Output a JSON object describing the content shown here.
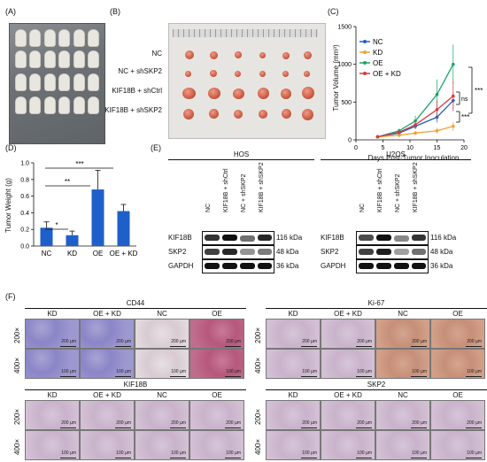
{
  "panels": {
    "a": "(A)",
    "b": "(B)",
    "c": "(C)",
    "d": "(D)",
    "e": "(E)",
    "f": "(F)"
  },
  "panel_b": {
    "rows": [
      "NC",
      "NC + shSKP2",
      "KIF18B + shCtrl",
      "KIF18B + shSKP2"
    ]
  },
  "chart_data": [
    {
      "type": "line",
      "xlabel": "Days Post-Tumor Inoculation",
      "ylabel": "Tumor Volume (mm³)",
      "x": [
        4,
        8,
        11,
        15,
        18
      ],
      "xticks": [
        0,
        5,
        10,
        15,
        20
      ],
      "yticks": [
        0,
        500,
        1000,
        1500
      ],
      "xlim": [
        0,
        20
      ],
      "ylim": [
        0,
        1500
      ],
      "series": [
        {
          "name": "NC",
          "color": "#1f5fc9",
          "values": [
            40,
            90,
            180,
            300,
            520
          ],
          "err": [
            10,
            20,
            40,
            70,
            120
          ]
        },
        {
          "name": "KD",
          "color": "#f1a232",
          "values": [
            40,
            60,
            90,
            120,
            180
          ],
          "err": [
            8,
            15,
            25,
            40,
            60
          ]
        },
        {
          "name": "OE",
          "color": "#1aa36b",
          "values": [
            40,
            120,
            250,
            600,
            1000
          ],
          "err": [
            10,
            30,
            70,
            200,
            260
          ]
        },
        {
          "name": "OE + KD",
          "color": "#d93a3a",
          "values": [
            40,
            100,
            200,
            400,
            580
          ],
          "err": [
            10,
            25,
            60,
            120,
            200
          ]
        }
      ],
      "legend_position": "top-left",
      "annotations": [
        "***",
        "ns",
        "***"
      ]
    },
    {
      "type": "bar",
      "ylabel": "Tumor Weight (g)",
      "categories": [
        "NC",
        "KD",
        "OE",
        "OE + KD"
      ],
      "values": [
        0.22,
        0.13,
        0.68,
        0.42
      ],
      "err": [
        0.07,
        0.05,
        0.23,
        0.08
      ],
      "yticks": [
        0,
        0.2,
        0.4,
        0.6,
        0.8,
        1.0
      ],
      "ylim": [
        0,
        1.0
      ],
      "color": "#1f5fc9",
      "annotations": [
        "*",
        "**",
        "***"
      ]
    }
  ],
  "panel_e": {
    "left": {
      "title": "HOS",
      "lanes": [
        "NC",
        "KIF18B + shCtrl",
        "NC + shSKP2",
        "KIF18B + shSKP2"
      ]
    },
    "right": {
      "title": "U2OS",
      "lanes": [
        "NC",
        "KIF18B + shCtrl",
        "NC + shSKP2",
        "KIF18B + shSKP2"
      ]
    },
    "proteins": [
      "KIF18B",
      "SKP2",
      "GAPDH"
    ],
    "sizes": [
      "116 kDa",
      "48 kDa",
      "36 kDa"
    ]
  },
  "panel_f": {
    "blocks": [
      {
        "title": "CD44",
        "cols": [
          "KD",
          "OE + KD",
          "NC",
          "OE"
        ]
      },
      {
        "title": "Ki-67",
        "cols": [
          "KD",
          "OE + KD",
          "NC",
          "OE"
        ]
      },
      {
        "title": "KIF18B",
        "cols": [
          "KD",
          "OE + KD",
          "NC",
          "OE"
        ]
      },
      {
        "title": "SKP2",
        "cols": [
          "KD",
          "OE + KD",
          "NC",
          "OE"
        ]
      }
    ],
    "mags": [
      "200×",
      "400×"
    ],
    "scales": [
      "200 µm",
      "100 µm"
    ]
  }
}
